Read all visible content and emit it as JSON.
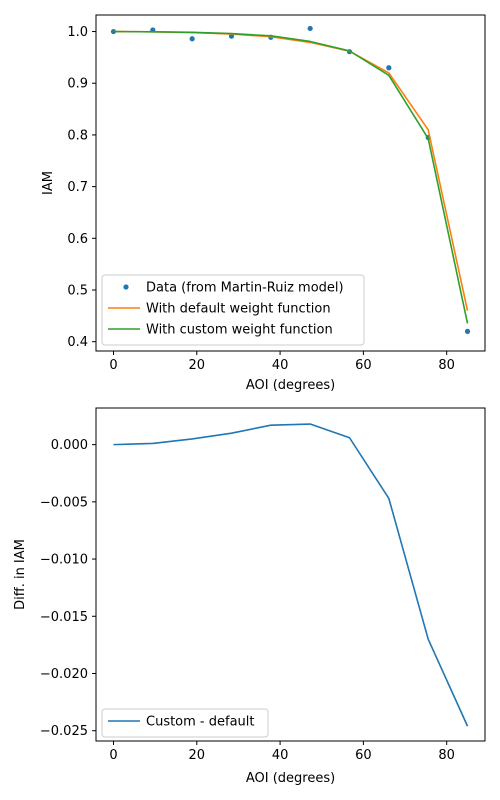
{
  "chart_data": [
    {
      "type": "line",
      "title": "",
      "xlabel": "AOI (degrees)",
      "ylabel": "IAM",
      "xlim": [
        -4.2,
        89.2
      ],
      "ylim": [
        0.382,
        1.032
      ],
      "xticks": [
        0,
        20,
        40,
        60,
        80
      ],
      "yticks": [
        0.4,
        0.5,
        0.6,
        0.7,
        0.8,
        0.9,
        1.0
      ],
      "xtick_labels": [
        "0",
        "20",
        "40",
        "60",
        "80"
      ],
      "ytick_labels": [
        "0.4",
        "0.5",
        "0.6",
        "0.7",
        "0.8",
        "0.9",
        "1.0"
      ],
      "legend_position": "lower-left",
      "grid": false,
      "series": [
        {
          "name": "Data (from Martin-Ruiz model)",
          "style": "points",
          "color": "#1f77b4",
          "x": [
            0,
            9.44,
            18.89,
            28.33,
            37.78,
            47.22,
            56.67,
            66.11,
            75.56,
            85
          ],
          "y": [
            1.0,
            1.003,
            0.986,
            0.991,
            0.989,
            1.006,
            0.961,
            0.93,
            0.795,
            0.42
          ]
        },
        {
          "name": "With default weight function",
          "style": "line",
          "color": "#ff7f0e",
          "x": [
            0,
            9.44,
            18.89,
            28.33,
            37.78,
            47.22,
            56.67,
            66.11,
            75.56,
            85
          ],
          "y": [
            1.0,
            0.9995,
            0.998,
            0.995,
            0.99,
            0.979,
            0.962,
            0.92,
            0.81,
            0.46
          ]
        },
        {
          "name": "With custom weight function",
          "style": "line",
          "color": "#2ca02c",
          "x": [
            0,
            9.44,
            18.89,
            28.33,
            37.78,
            47.22,
            56.67,
            66.11,
            75.56,
            85
          ],
          "y": [
            1.0,
            0.9995,
            0.9985,
            0.996,
            0.9917,
            0.9808,
            0.9626,
            0.9153,
            0.793,
            0.4354
          ]
        }
      ]
    },
    {
      "type": "line",
      "title": "",
      "xlabel": "AOI (degrees)",
      "ylabel": "Diff. in IAM",
      "xlim": [
        -4.2,
        89.2
      ],
      "ylim": [
        -0.0259,
        0.0032
      ],
      "xticks": [
        0,
        20,
        40,
        60,
        80
      ],
      "yticks": [
        0.0,
        -0.005,
        -0.01,
        -0.015,
        -0.02,
        -0.025
      ],
      "xtick_labels": [
        "0",
        "20",
        "40",
        "60",
        "80"
      ],
      "ytick_labels": [
        "0.000",
        "−0.005",
        "−0.010",
        "−0.015",
        "−0.020",
        "−0.025"
      ],
      "legend_position": "lower-left",
      "grid": false,
      "series": [
        {
          "name": "Custom - default",
          "style": "line",
          "color": "#1f77b4",
          "x": [
            0,
            9.44,
            18.89,
            28.33,
            37.78,
            47.22,
            56.67,
            66.11,
            75.56,
            85
          ],
          "y": [
            0.0,
            0.0001,
            0.0005,
            0.001,
            0.0017,
            0.0018,
            0.0006,
            -0.0047,
            -0.017,
            -0.0246
          ]
        }
      ]
    }
  ]
}
